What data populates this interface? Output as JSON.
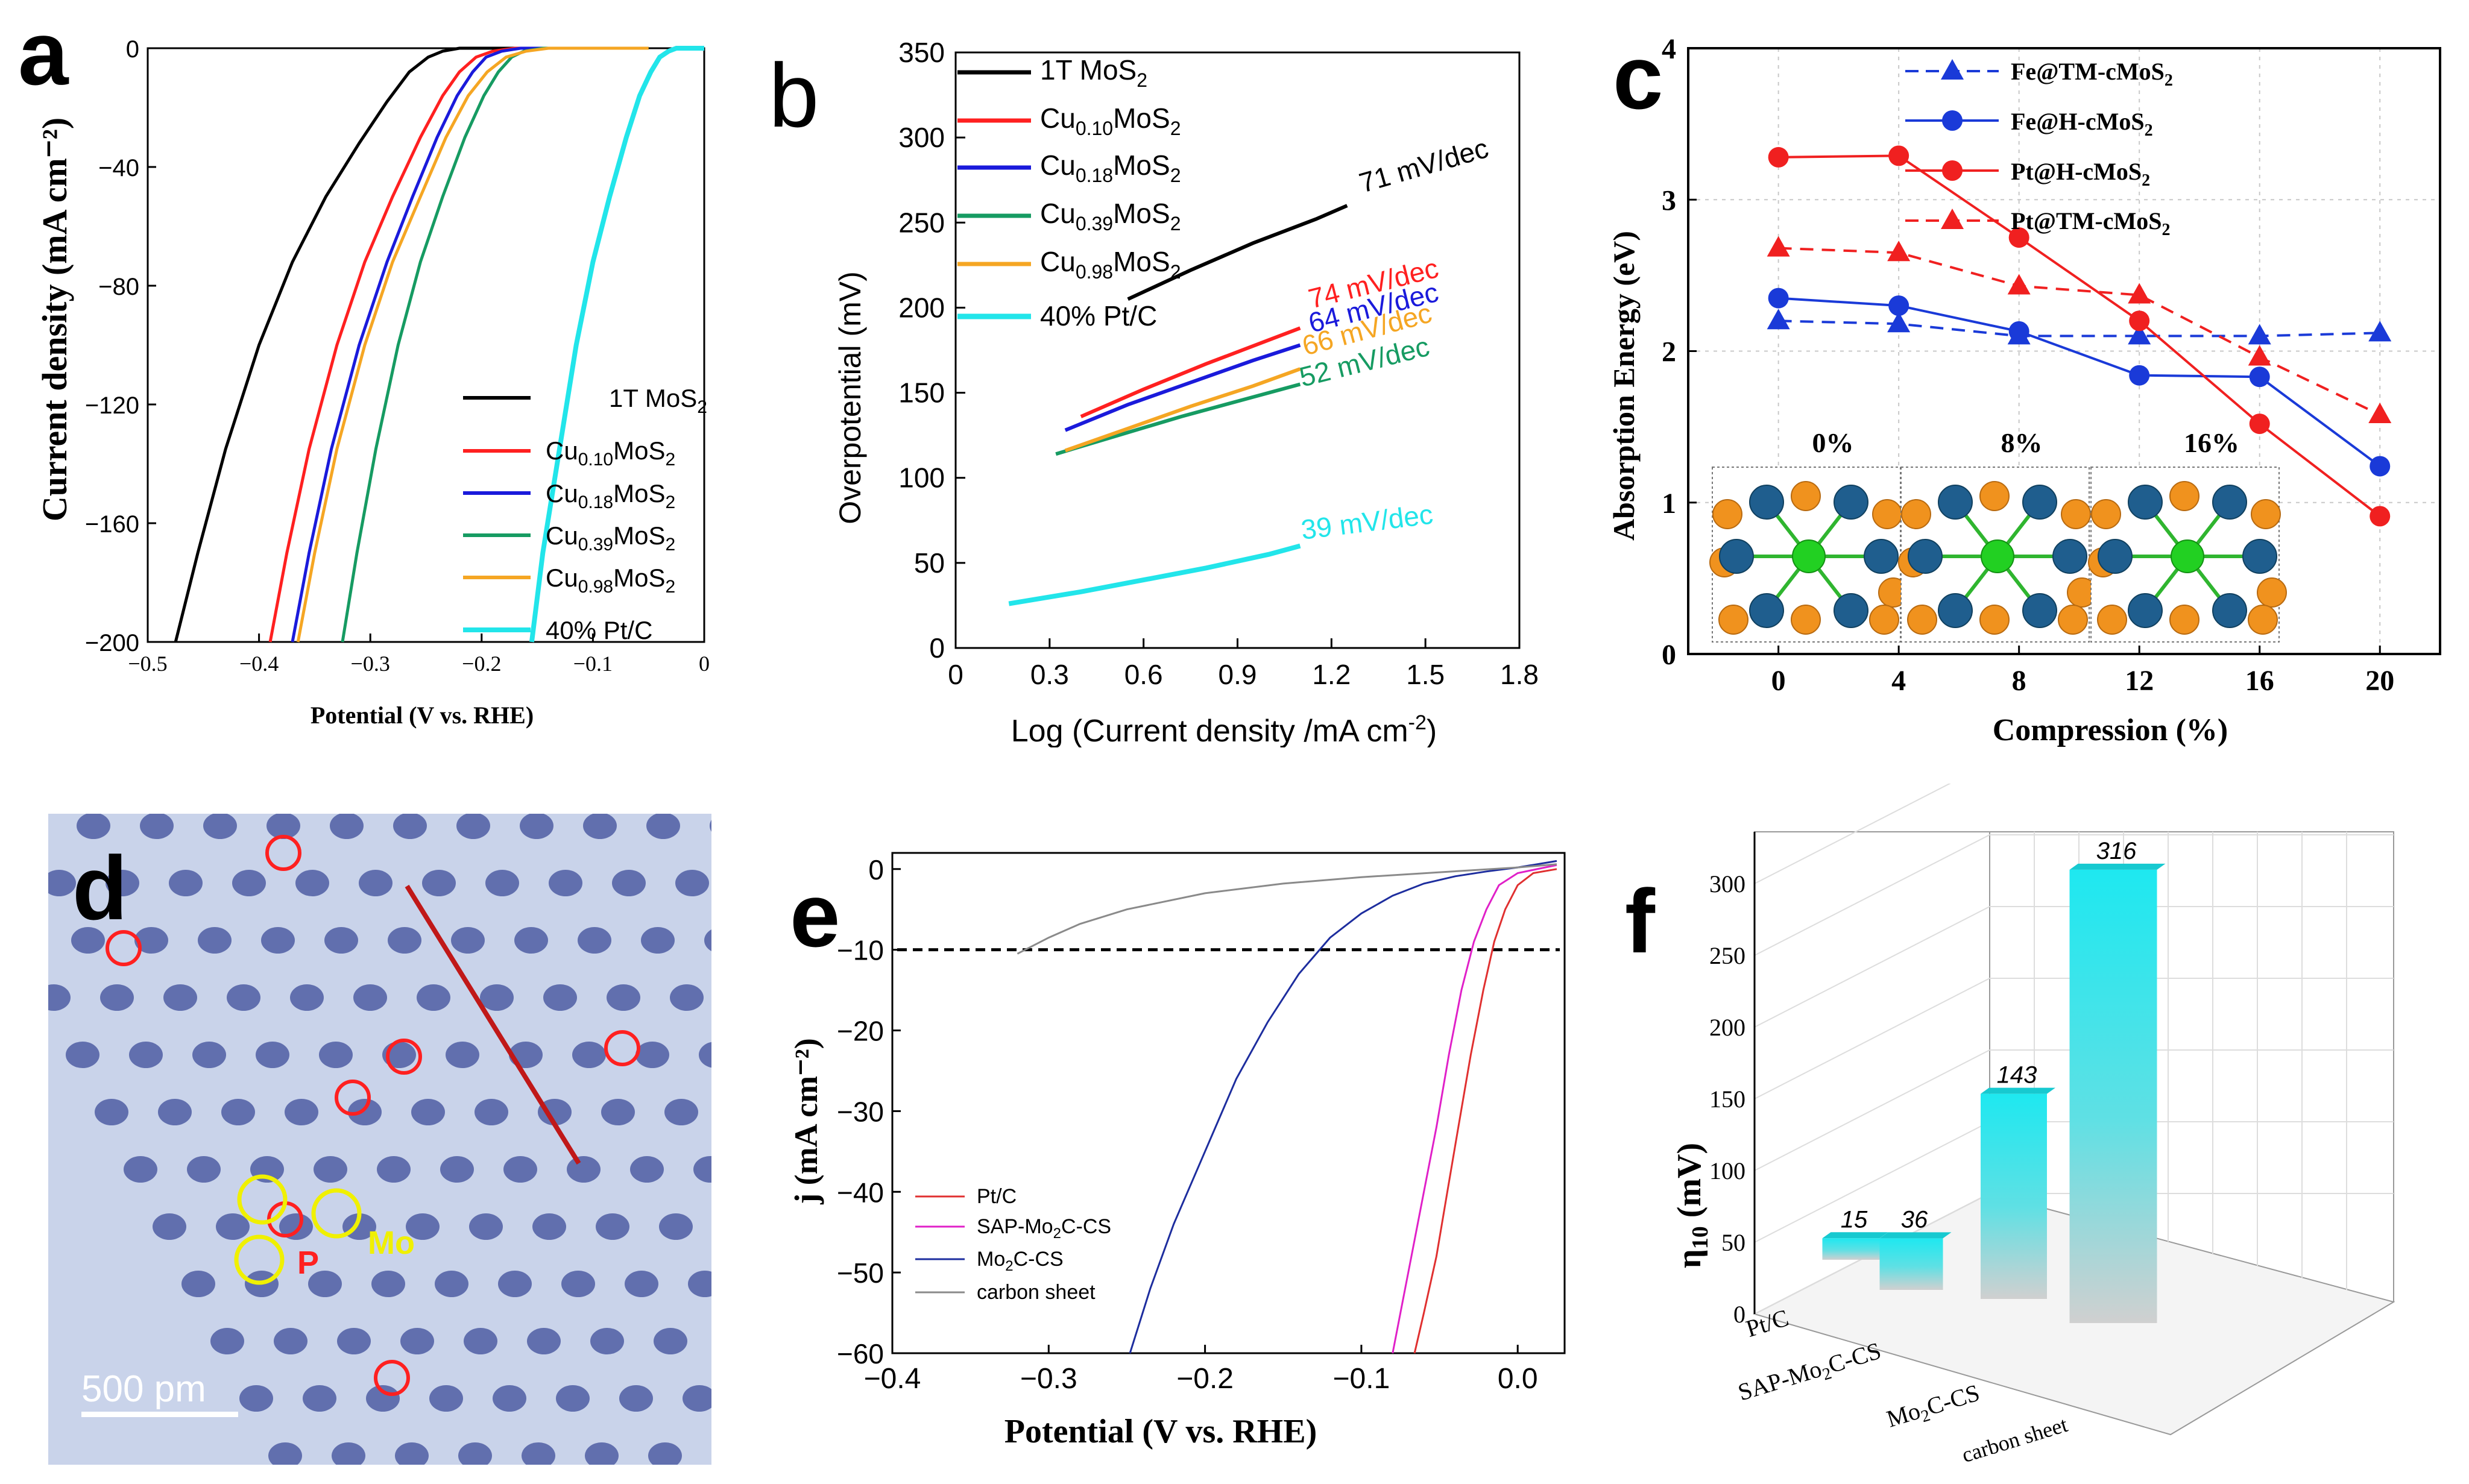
{
  "panel_labels": {
    "a": "a",
    "b": "b",
    "c": "c",
    "d": "d",
    "e": "e",
    "f": "f"
  },
  "colors": {
    "black": "#000000",
    "red": "#ff2020",
    "blue": "#1a1adb",
    "green": "#169b62",
    "orange": "#f5a623",
    "cyan": "#22e5ea",
    "darkblue": "#1d2d9e",
    "magenta": "#e020c8",
    "gray": "#8a8a8a",
    "fe_blue": "#1a3ad8",
    "pt_red": "#f02020"
  },
  "chart_data": [
    {
      "id": "a",
      "type": "line",
      "title": "",
      "xlabel": "Potential (V vs. RHE)",
      "ylabel": "Current density (mA cm⁻²)",
      "xlim": [
        -0.5,
        0
      ],
      "ylim": [
        -200,
        0
      ],
      "xticks": [
        "−0.5",
        "−0.4",
        "−0.3",
        "−0.2",
        "−0.1",
        "0"
      ],
      "yticks": [
        "0",
        "−40",
        "−80",
        "−120",
        "−160",
        "−200"
      ],
      "legend_position": "bottom-right",
      "series": [
        {
          "name": "1T MoS₂",
          "color": "#000000",
          "x": [
            -0.475,
            -0.455,
            -0.43,
            -0.4,
            -0.37,
            -0.34,
            -0.31,
            -0.285,
            -0.265,
            -0.248,
            -0.235,
            -0.22,
            -0.205,
            -0.15,
            -0.1
          ],
          "y": [
            -200,
            -170,
            -135,
            -100,
            -72,
            -50,
            -32,
            -18,
            -8,
            -3,
            -1,
            0,
            0,
            0,
            0
          ]
        },
        {
          "name": "Cu₀.₁₀MoS₂",
          "color": "#ff2020",
          "x": [
            -0.39,
            -0.375,
            -0.355,
            -0.33,
            -0.305,
            -0.28,
            -0.255,
            -0.235,
            -0.22,
            -0.205,
            -0.19,
            -0.17,
            -0.15,
            -0.1
          ],
          "y": [
            -200,
            -170,
            -135,
            -100,
            -72,
            -50,
            -30,
            -16,
            -8,
            -3,
            -1,
            0,
            0,
            0
          ]
        },
        {
          "name": "Cu₀.₁₈MoS₂",
          "color": "#1a1adb",
          "x": [
            -0.37,
            -0.355,
            -0.335,
            -0.31,
            -0.285,
            -0.262,
            -0.24,
            -0.222,
            -0.208,
            -0.196,
            -0.182,
            -0.165,
            -0.15,
            -0.1
          ],
          "y": [
            -200,
            -170,
            -135,
            -100,
            -72,
            -50,
            -30,
            -16,
            -8,
            -3,
            -1,
            0,
            0,
            0
          ]
        },
        {
          "name": "Cu₀.₃₉MoS₂",
          "color": "#169b62",
          "x": [
            -0.325,
            -0.312,
            -0.295,
            -0.275,
            -0.255,
            -0.235,
            -0.215,
            -0.198,
            -0.185,
            -0.173,
            -0.162,
            -0.145,
            -0.12,
            -0.05
          ],
          "y": [
            -200,
            -170,
            -135,
            -100,
            -72,
            -50,
            -30,
            -16,
            -8,
            -3,
            -1,
            0,
            0,
            0
          ]
        },
        {
          "name": "Cu₀.₉₈MoS₂",
          "color": "#f5a623",
          "x": [
            -0.365,
            -0.35,
            -0.33,
            -0.305,
            -0.28,
            -0.255,
            -0.232,
            -0.212,
            -0.195,
            -0.178,
            -0.16,
            -0.14,
            -0.12,
            -0.05
          ],
          "y": [
            -200,
            -170,
            -135,
            -100,
            -72,
            -50,
            -30,
            -16,
            -8,
            -3,
            -1,
            0,
            0,
            0
          ]
        },
        {
          "name": "40% Pt/C",
          "color": "#22e5ea",
          "x": [
            -0.155,
            -0.145,
            -0.13,
            -0.115,
            -0.1,
            -0.085,
            -0.07,
            -0.058,
            -0.048,
            -0.04,
            -0.032,
            -0.025,
            -0.02,
            0
          ],
          "y": [
            -200,
            -170,
            -135,
            -100,
            -72,
            -50,
            -30,
            -16,
            -8,
            -3,
            -1,
            0,
            0,
            0
          ]
        }
      ]
    },
    {
      "id": "b",
      "type": "line",
      "title": "",
      "xlabel": "Log (Current density /mA cm⁻²)",
      "ylabel": "Overpotential (mV)",
      "xlim": [
        0,
        1.8
      ],
      "ylim": [
        0,
        350
      ],
      "xticks": [
        "0",
        "0.3",
        "0.6",
        "0.9",
        "1.2",
        "1.5",
        "1.8"
      ],
      "yticks": [
        "0",
        "50",
        "100",
        "150",
        "200",
        "250",
        "300",
        "350"
      ],
      "legend_position": "top-left",
      "series": [
        {
          "name": "1T MoS₂",
          "color": "#000000",
          "x": [
            0.55,
            0.75,
            0.95,
            1.15,
            1.25
          ],
          "y": [
            205,
            222,
            238,
            252,
            260
          ],
          "label": "71 mV/dec"
        },
        {
          "name": "Cu₀.₁₀MoS₂",
          "color": "#ff2020",
          "x": [
            0.4,
            0.6,
            0.8,
            1.0,
            1.1
          ],
          "y": [
            136,
            152,
            167,
            181,
            188
          ],
          "label": "74 mV/dec"
        },
        {
          "name": "Cu₀.₁₈MoS₂",
          "color": "#1a1adb",
          "x": [
            0.35,
            0.55,
            0.75,
            0.95,
            1.1
          ],
          "y": [
            128,
            143,
            156,
            169,
            178
          ],
          "label": "64 mV/dec"
        },
        {
          "name": "Cu₀.₃₉MoS₂",
          "color": "#169b62",
          "x": [
            0.32,
            0.52,
            0.72,
            0.92,
            1.1
          ],
          "y": [
            114,
            125,
            136,
            146,
            155
          ],
          "label": "52 mV/dec"
        },
        {
          "name": "Cu₀.₉₈MoS₂",
          "color": "#f5a623",
          "x": [
            0.35,
            0.55,
            0.75,
            0.95,
            1.1
          ],
          "y": [
            116,
            129,
            142,
            154,
            164
          ],
          "label": "66 mV/dec"
        },
        {
          "name": "40% Pt/C",
          "color": "#22e5ea",
          "x": [
            0.17,
            0.4,
            0.6,
            0.8,
            1.0,
            1.1
          ],
          "y": [
            26,
            33,
            40,
            47,
            55,
            60
          ],
          "label": "39 mV/dec"
        }
      ]
    },
    {
      "id": "c",
      "type": "line",
      "title": "",
      "xlabel": "Compression (%)",
      "ylabel": "Absorption Energy (eV)",
      "xlim": [
        -3,
        22
      ],
      "ylim": [
        0,
        4
      ],
      "xticks": [
        "0",
        "4",
        "8",
        "12",
        "16",
        "20"
      ],
      "yticks": [
        "0",
        "1",
        "2",
        "3",
        "4"
      ],
      "x": [
        0,
        4,
        8,
        12,
        16,
        20
      ],
      "legend_position": "top-right",
      "inset_labels": [
        "0%",
        "8%",
        "16%"
      ],
      "series": [
        {
          "name": "Fe@TM-cMoS₂",
          "color": "#1a3ad8",
          "marker": "triangle",
          "dash": true,
          "values": [
            2.2,
            2.18,
            2.1,
            2.1,
            2.1,
            2.12
          ]
        },
        {
          "name": "Fe@H-cMoS₂",
          "color": "#1a3ad8",
          "marker": "circle",
          "dash": false,
          "values": [
            2.35,
            2.3,
            2.13,
            1.84,
            1.83,
            1.24
          ]
        },
        {
          "name": "Pt@H-cMoS₂",
          "color": "#f02020",
          "marker": "circle",
          "dash": false,
          "values": [
            3.28,
            3.29,
            2.75,
            2.2,
            1.52,
            0.91
          ]
        },
        {
          "name": "Pt@TM-cMoS₂",
          "color": "#f02020",
          "marker": "triangle",
          "dash": true,
          "values": [
            2.68,
            2.65,
            2.43,
            2.37,
            1.96,
            1.58
          ]
        }
      ]
    },
    {
      "id": "d",
      "type": "image",
      "scale_bar": "500 pm",
      "labels": {
        "p": "P",
        "mo": "Mo"
      }
    },
    {
      "id": "e",
      "type": "line",
      "title": "",
      "xlabel": "Potential (V vs. RHE)",
      "ylabel": "j (mA cm⁻²)",
      "xlim": [
        -0.4,
        0.03
      ],
      "ylim": [
        -60,
        2
      ],
      "xticks": [
        "−0.4",
        "−0.3",
        "−0.2",
        "−0.1",
        "0.0"
      ],
      "yticks": [
        "0",
        "−10",
        "−20",
        "−30",
        "−40",
        "−50",
        "−60"
      ],
      "reference_y": -10,
      "legend_position": "bottom-left",
      "series": [
        {
          "name": "Pt/C",
          "color": "#e03030",
          "x": [
            -0.066,
            -0.06,
            -0.052,
            -0.045,
            -0.038,
            -0.03,
            -0.022,
            -0.015,
            -0.008,
            0.0,
            0.01,
            0.025
          ],
          "y": [
            -60,
            -55,
            -48,
            -40,
            -32,
            -23,
            -15,
            -9,
            -5,
            -2,
            -0.5,
            0
          ]
        },
        {
          "name": "SAP-Mo₂C-CS",
          "color": "#e020c8",
          "x": [
            -0.08,
            -0.075,
            -0.068,
            -0.06,
            -0.052,
            -0.044,
            -0.036,
            -0.028,
            -0.02,
            -0.012,
            0.0,
            0.025
          ],
          "y": [
            -60,
            -55,
            -48,
            -40,
            -32,
            -23,
            -15,
            -9,
            -5,
            -2,
            -0.5,
            0.5
          ]
        },
        {
          "name": "Mo₂C-CS",
          "color": "#1d2d9e",
          "x": [
            -0.248,
            -0.235,
            -0.22,
            -0.2,
            -0.18,
            -0.16,
            -0.14,
            -0.12,
            -0.1,
            -0.08,
            -0.06,
            -0.04,
            -0.02,
            0.0,
            0.025
          ],
          "y": [
            -60,
            -52,
            -44,
            -35,
            -26,
            -19,
            -13,
            -8.5,
            -5.5,
            -3.3,
            -1.8,
            -0.9,
            -0.3,
            0.2,
            1
          ]
        },
        {
          "name": "carbon sheet",
          "color": "#8a8a8a",
          "x": [
            -0.32,
            -0.3,
            -0.28,
            -0.25,
            -0.2,
            -0.15,
            -0.1,
            -0.05,
            0.0,
            0.025
          ],
          "y": [
            -10.5,
            -8.5,
            -6.8,
            -5,
            -3,
            -1.8,
            -1,
            -0.4,
            0.2,
            0.6
          ]
        }
      ]
    },
    {
      "id": "f",
      "type": "bar",
      "title": "",
      "xlabel": "",
      "ylabel": "η₁₀ (mV)",
      "ylim": [
        0,
        300
      ],
      "yticks": [
        "0",
        "50",
        "100",
        "150",
        "200",
        "250",
        "300"
      ],
      "categories": [
        "Pt/C",
        "SAP-Mo₂C-CS",
        "Mo₂C-CS",
        "carbon sheet"
      ],
      "values": [
        15,
        36,
        143,
        316
      ]
    }
  ]
}
